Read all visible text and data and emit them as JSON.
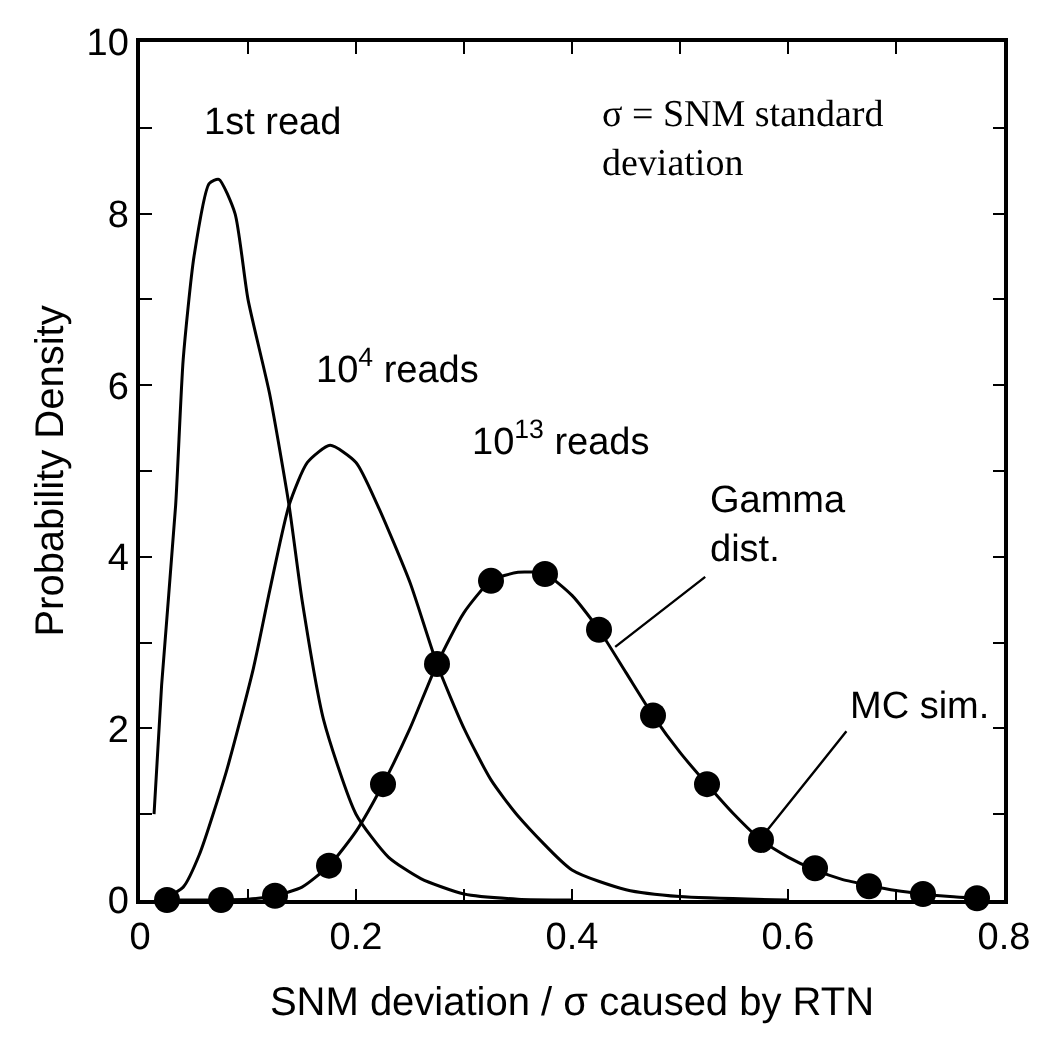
{
  "chart_data": {
    "type": "line",
    "xlabel": "SNM deviation / σ caused by RTN",
    "ylabel": "Probability Density",
    "xlim": [
      0,
      0.8
    ],
    "ylim": [
      0,
      10
    ],
    "xticks": [
      0,
      {
        "value": 0.1,
        "label": null
      },
      0.2,
      {
        "value": 0.3,
        "label": null
      },
      0.4,
      {
        "value": 0.5,
        "label": null
      },
      0.6,
      {
        "value": 0.7,
        "label": null
      },
      0.8
    ],
    "yticks": [
      0,
      {
        "value": 1,
        "label": null
      },
      2,
      {
        "value": 3,
        "label": null
      },
      4,
      {
        "value": 5,
        "label": null
      },
      6,
      {
        "value": 7,
        "label": null
      },
      8,
      {
        "value": 9,
        "label": null
      },
      10
    ],
    "grid": false,
    "series": [
      {
        "color": "#000000",
        "marker": "none",
        "x": [
          0.013,
          0.02,
          0.033,
          0.04,
          0.05,
          0.064,
          0.073,
          0.088,
          0.1,
          0.12,
          0.138,
          0.15,
          0.17,
          0.2,
          0.23,
          0.26,
          0.3,
          0.35,
          0.4
        ],
        "values": [
          1.0,
          2.5,
          4.6,
          6.3,
          7.5,
          8.35,
          8.4,
          8.0,
          7.0,
          5.9,
          4.6,
          3.5,
          2.1,
          1.0,
          0.5,
          0.25,
          0.07,
          0.01,
          0
        ]
      },
      {
        "color": "#000000",
        "marker": "none",
        "x": [
          0.02,
          0.04,
          0.055,
          0.08,
          0.105,
          0.12,
          0.138,
          0.155,
          0.176,
          0.2,
          0.22,
          0.25,
          0.275,
          0.3,
          0.325,
          0.35,
          0.4,
          0.45,
          0.5,
          0.6
        ],
        "values": [
          0,
          0.15,
          0.53,
          1.5,
          2.7,
          3.6,
          4.6,
          5.1,
          5.3,
          5.1,
          4.6,
          3.7,
          2.75,
          2.0,
          1.4,
          0.98,
          0.35,
          0.12,
          0.04,
          0
        ]
      },
      {
        "color": "#000000",
        "marker": "none",
        "x": [
          0.02,
          0.1,
          0.125,
          0.15,
          0.175,
          0.2,
          0.225,
          0.25,
          0.275,
          0.3,
          0.325,
          0.35,
          0.375,
          0.4,
          0.425,
          0.45,
          0.475,
          0.5,
          0.525,
          0.55,
          0.575,
          0.6,
          0.625,
          0.65,
          0.675,
          0.7,
          0.725,
          0.75,
          0.775
        ],
        "values": [
          0,
          0.01,
          0.05,
          0.15,
          0.4,
          0.8,
          1.35,
          2.0,
          2.75,
          3.35,
          3.72,
          3.82,
          3.8,
          3.55,
          3.15,
          2.65,
          2.15,
          1.72,
          1.35,
          1.0,
          0.7,
          0.5,
          0.35,
          0.24,
          0.17,
          0.11,
          0.07,
          0.04,
          0.02
        ]
      },
      {
        "type": "scatter",
        "color": "#000000",
        "marker": "circle",
        "x": [
          0.025,
          0.075,
          0.125,
          0.175,
          0.225,
          0.275,
          0.325,
          0.375,
          0.425,
          0.475,
          0.525,
          0.575,
          0.625,
          0.675,
          0.725,
          0.775
        ],
        "values": [
          0,
          0,
          0.05,
          0.4,
          1.35,
          2.75,
          3.72,
          3.8,
          3.15,
          2.15,
          1.35,
          0.7,
          0.37,
          0.16,
          0.07,
          0.02
        ]
      }
    ],
    "annotations": [
      "1st read",
      "10$^{4}$ reads",
      "10$^{13}$ reads",
      "σ = SNM standard\ndeviation",
      {
        "text": "Gamma\ndist.",
        "x": 0.44,
        "y": 2.95
      },
      {
        "text": "MC sim.",
        "x": 0.58,
        "y": 0.8
      }
    ]
  }
}
